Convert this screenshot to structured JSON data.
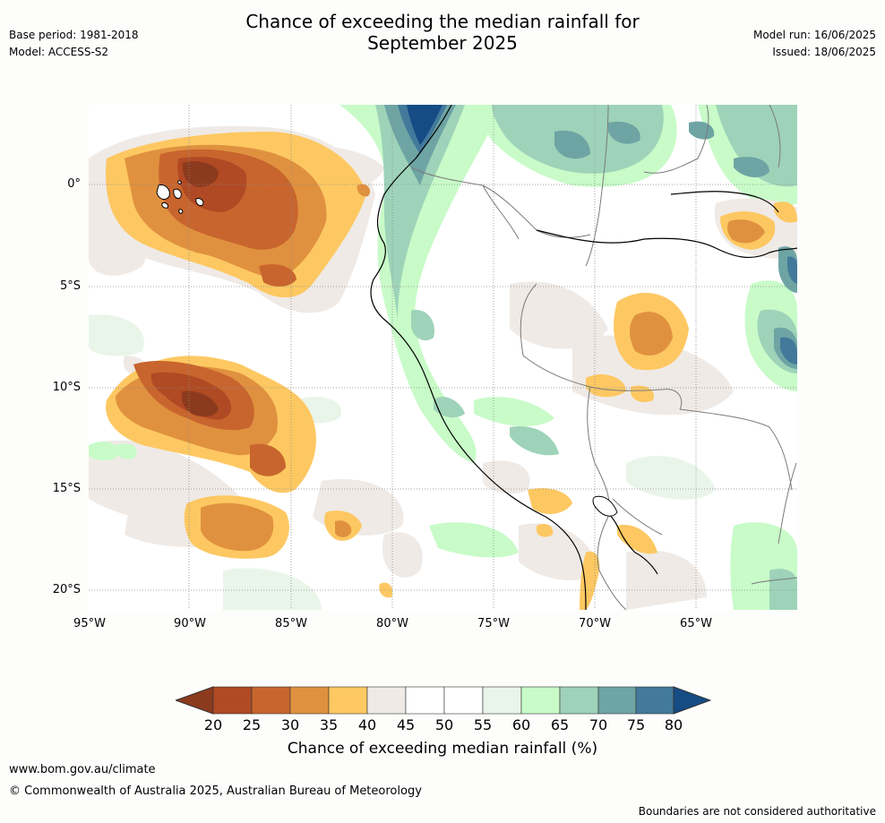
{
  "header": {
    "title_line1": "Chance of exceeding the median rainfall for",
    "title_line2": "September 2025",
    "base_period": "Base period: 1981-2018",
    "model": "Model: ACCESS-S2",
    "model_run": "Model run: 16/06/2025",
    "issued": "Issued: 18/06/2025"
  },
  "map": {
    "lat_labels": [
      "0°",
      "5°S",
      "10°S",
      "15°S",
      "20°S"
    ],
    "lon_labels": [
      "95°W",
      "90°W",
      "85°W",
      "80°W",
      "75°W",
      "70°W",
      "65°W"
    ],
    "colors": {
      "c20": "#8c3a1e",
      "c25": "#b04a24",
      "c30": "#c8652e",
      "c35": "#e0913f",
      "c40": "#fdc862",
      "c45": "#efeae6",
      "c50": "#ffffff",
      "c55": "#ffffff",
      "c60": "#eaf5ea",
      "c65": "#c8fbc8",
      "c70": "#9ed3b9",
      "c75": "#6ea4a4",
      "c80": "#43799a",
      "c80plus": "#154c84"
    }
  },
  "colorbar": {
    "ticks": [
      "20",
      "25",
      "30",
      "35",
      "40",
      "45",
      "50",
      "55",
      "60",
      "65",
      "70",
      "75",
      "80"
    ],
    "label": "Chance of exceeding median rainfall (%)"
  },
  "footer": {
    "url": "www.bom.gov.au/climate",
    "copyright": "© Commonwealth of Australia 2025, Australian Bureau of Meteorology",
    "note": "Boundaries are not considered authoritative"
  }
}
